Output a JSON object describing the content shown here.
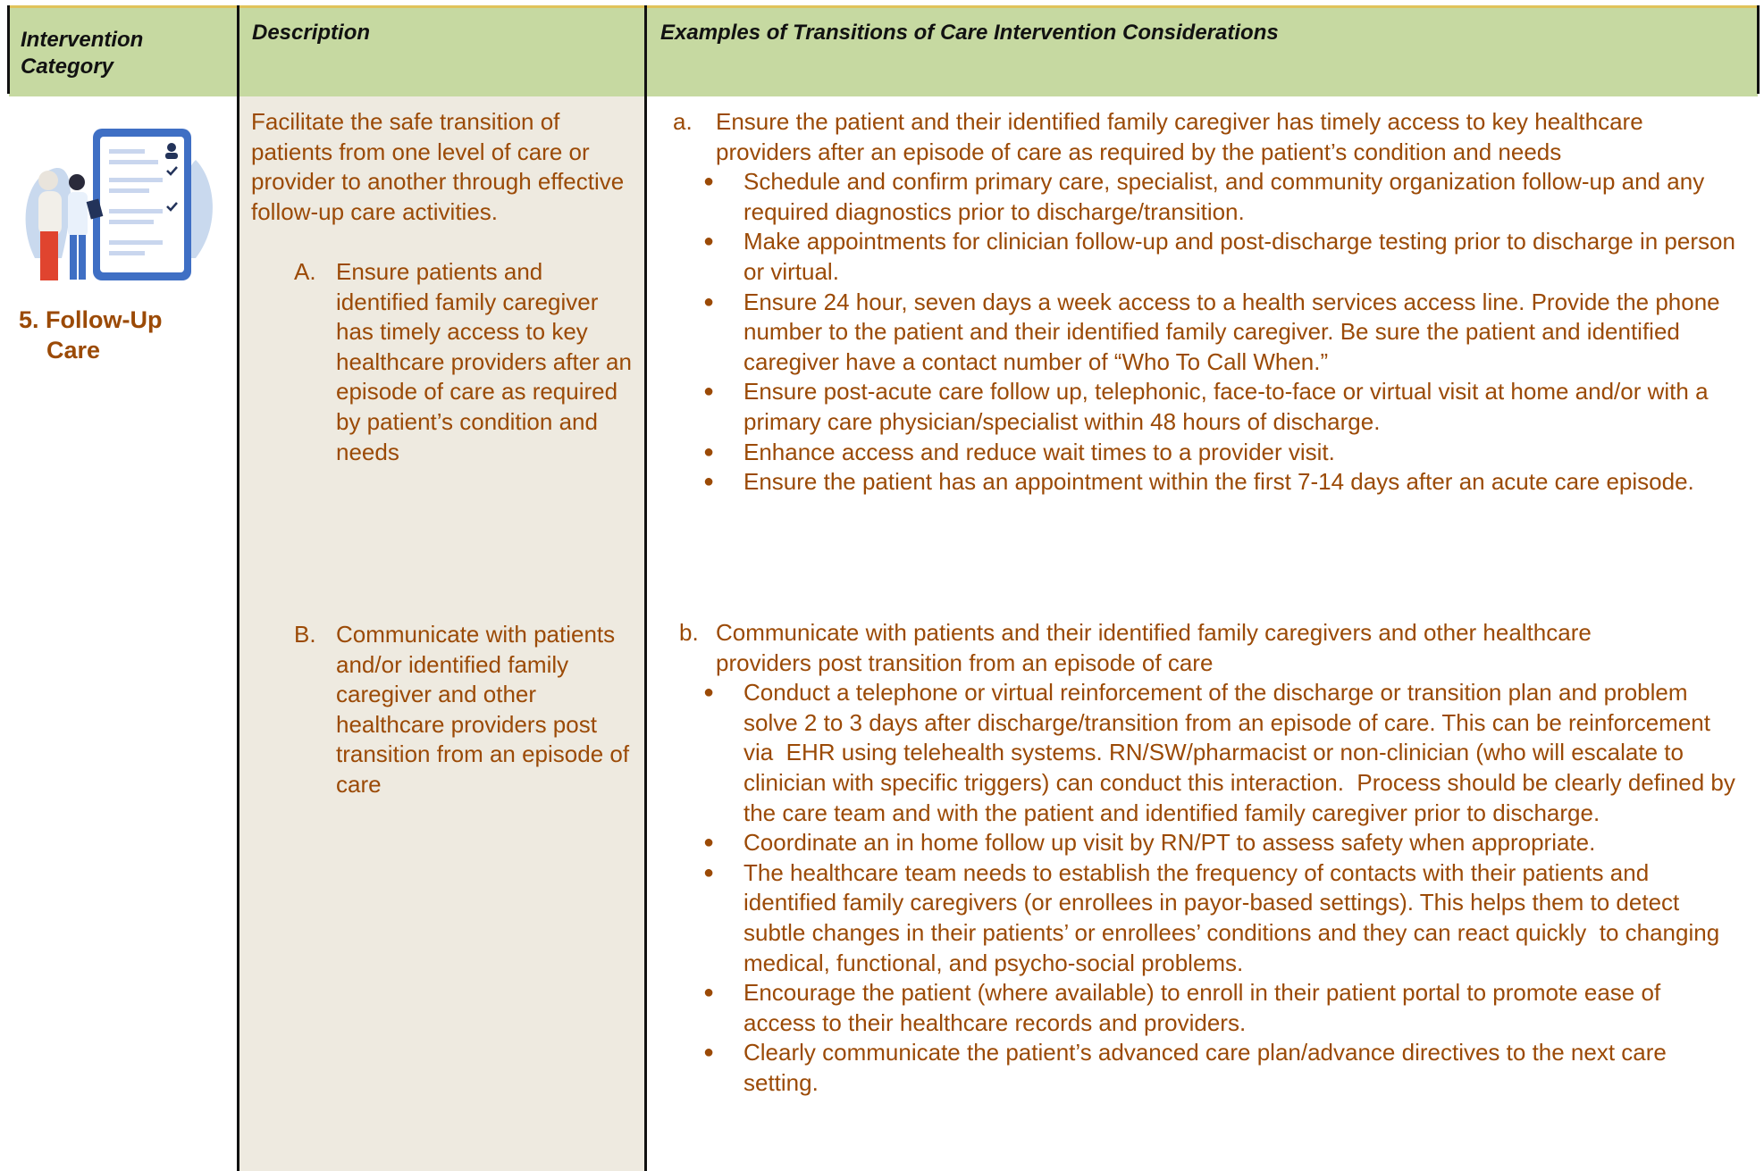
{
  "table": {
    "header": [
      "Intervention Category",
      "Description",
      "Examples of Transitions of Care Intervention Considerations"
    ],
    "row": {
      "category": "5. Follow-Up Care",
      "description": {
        "intro": "Facilitate the safe transition of patients from one level of care or provider to another through effective follow-up care activities.",
        "items": [
          {
            "marker": "A.",
            "text": "Ensure patients and identified family caregiver has timely access to key healthcare providers after an episode of care as required by patient’s condition and needs"
          },
          {
            "marker": "B.",
            "text": "Communicate with patients and/or identified family caregiver and other  healthcare providers post  transition from an episode of  care"
          }
        ]
      },
      "examples": [
        {
          "marker": "a.",
          "text": "Ensure the patient and their identified family caregiver has timely access to key healthcare providers after an episode of care as required by the patient’s condition and needs",
          "bullets": [
            "Schedule and confirm primary care, specialist, and community organization follow-up and any required diagnostics prior to discharge/transition.",
            "Make appointments for clinician follow-up and post-discharge testing prior to discharge in person or virtual.",
            "Ensure 24 hour, seven days a week access to a health services access line. Provide the phone number to the patient and their identified family caregiver. Be sure the patient and identified caregiver have a contact number of “Who To Call When.”",
            "Ensure post-acute care follow up, telephonic, face-to-face or virtual visit at home and/or with a primary care physician/specialist within 48 hours of discharge.",
            "Enhance access and reduce wait times to a provider visit.",
            "Ensure the patient has an appointment within the first 7-14 days after an acute care episode."
          ]
        },
        {
          "marker": "b.",
          "text": "Communicate with patients and their identified family caregivers and other healthcare providers post transition from an episode of care",
          "bullets": [
            "Conduct a telephone or virtual reinforcement of the discharge or transition plan and problem solve 2 to 3 days after discharge/transition from an episode of care. This can be reinforcement via  EHR using telehealth systems. RN/SW/pharmacist or non-clinician (who will escalate to clinician with specific triggers) can conduct this interaction.  Process should be clearly defined by the care team and with the patient and identified family caregiver prior to discharge.",
            "Coordinate an in home follow up visit by RN/PT to assess safety when appropriate.",
            "The healthcare team needs to establish the frequency of contacts with their patients and identified family caregivers (or enrollees in payor-based settings). This helps them to detect subtle changes in their patients’ or enrollees’ conditions and they can react quickly  to changing medical, functional, and psycho-social problems.",
            "Encourage the patient (where available) to enroll in their patient portal to promote ease of access to their healthcare records and providers.",
            "Clearly communicate the patient’s advanced care plan/advance directives to the next care setting."
          ]
        }
      ]
    }
  }
}
